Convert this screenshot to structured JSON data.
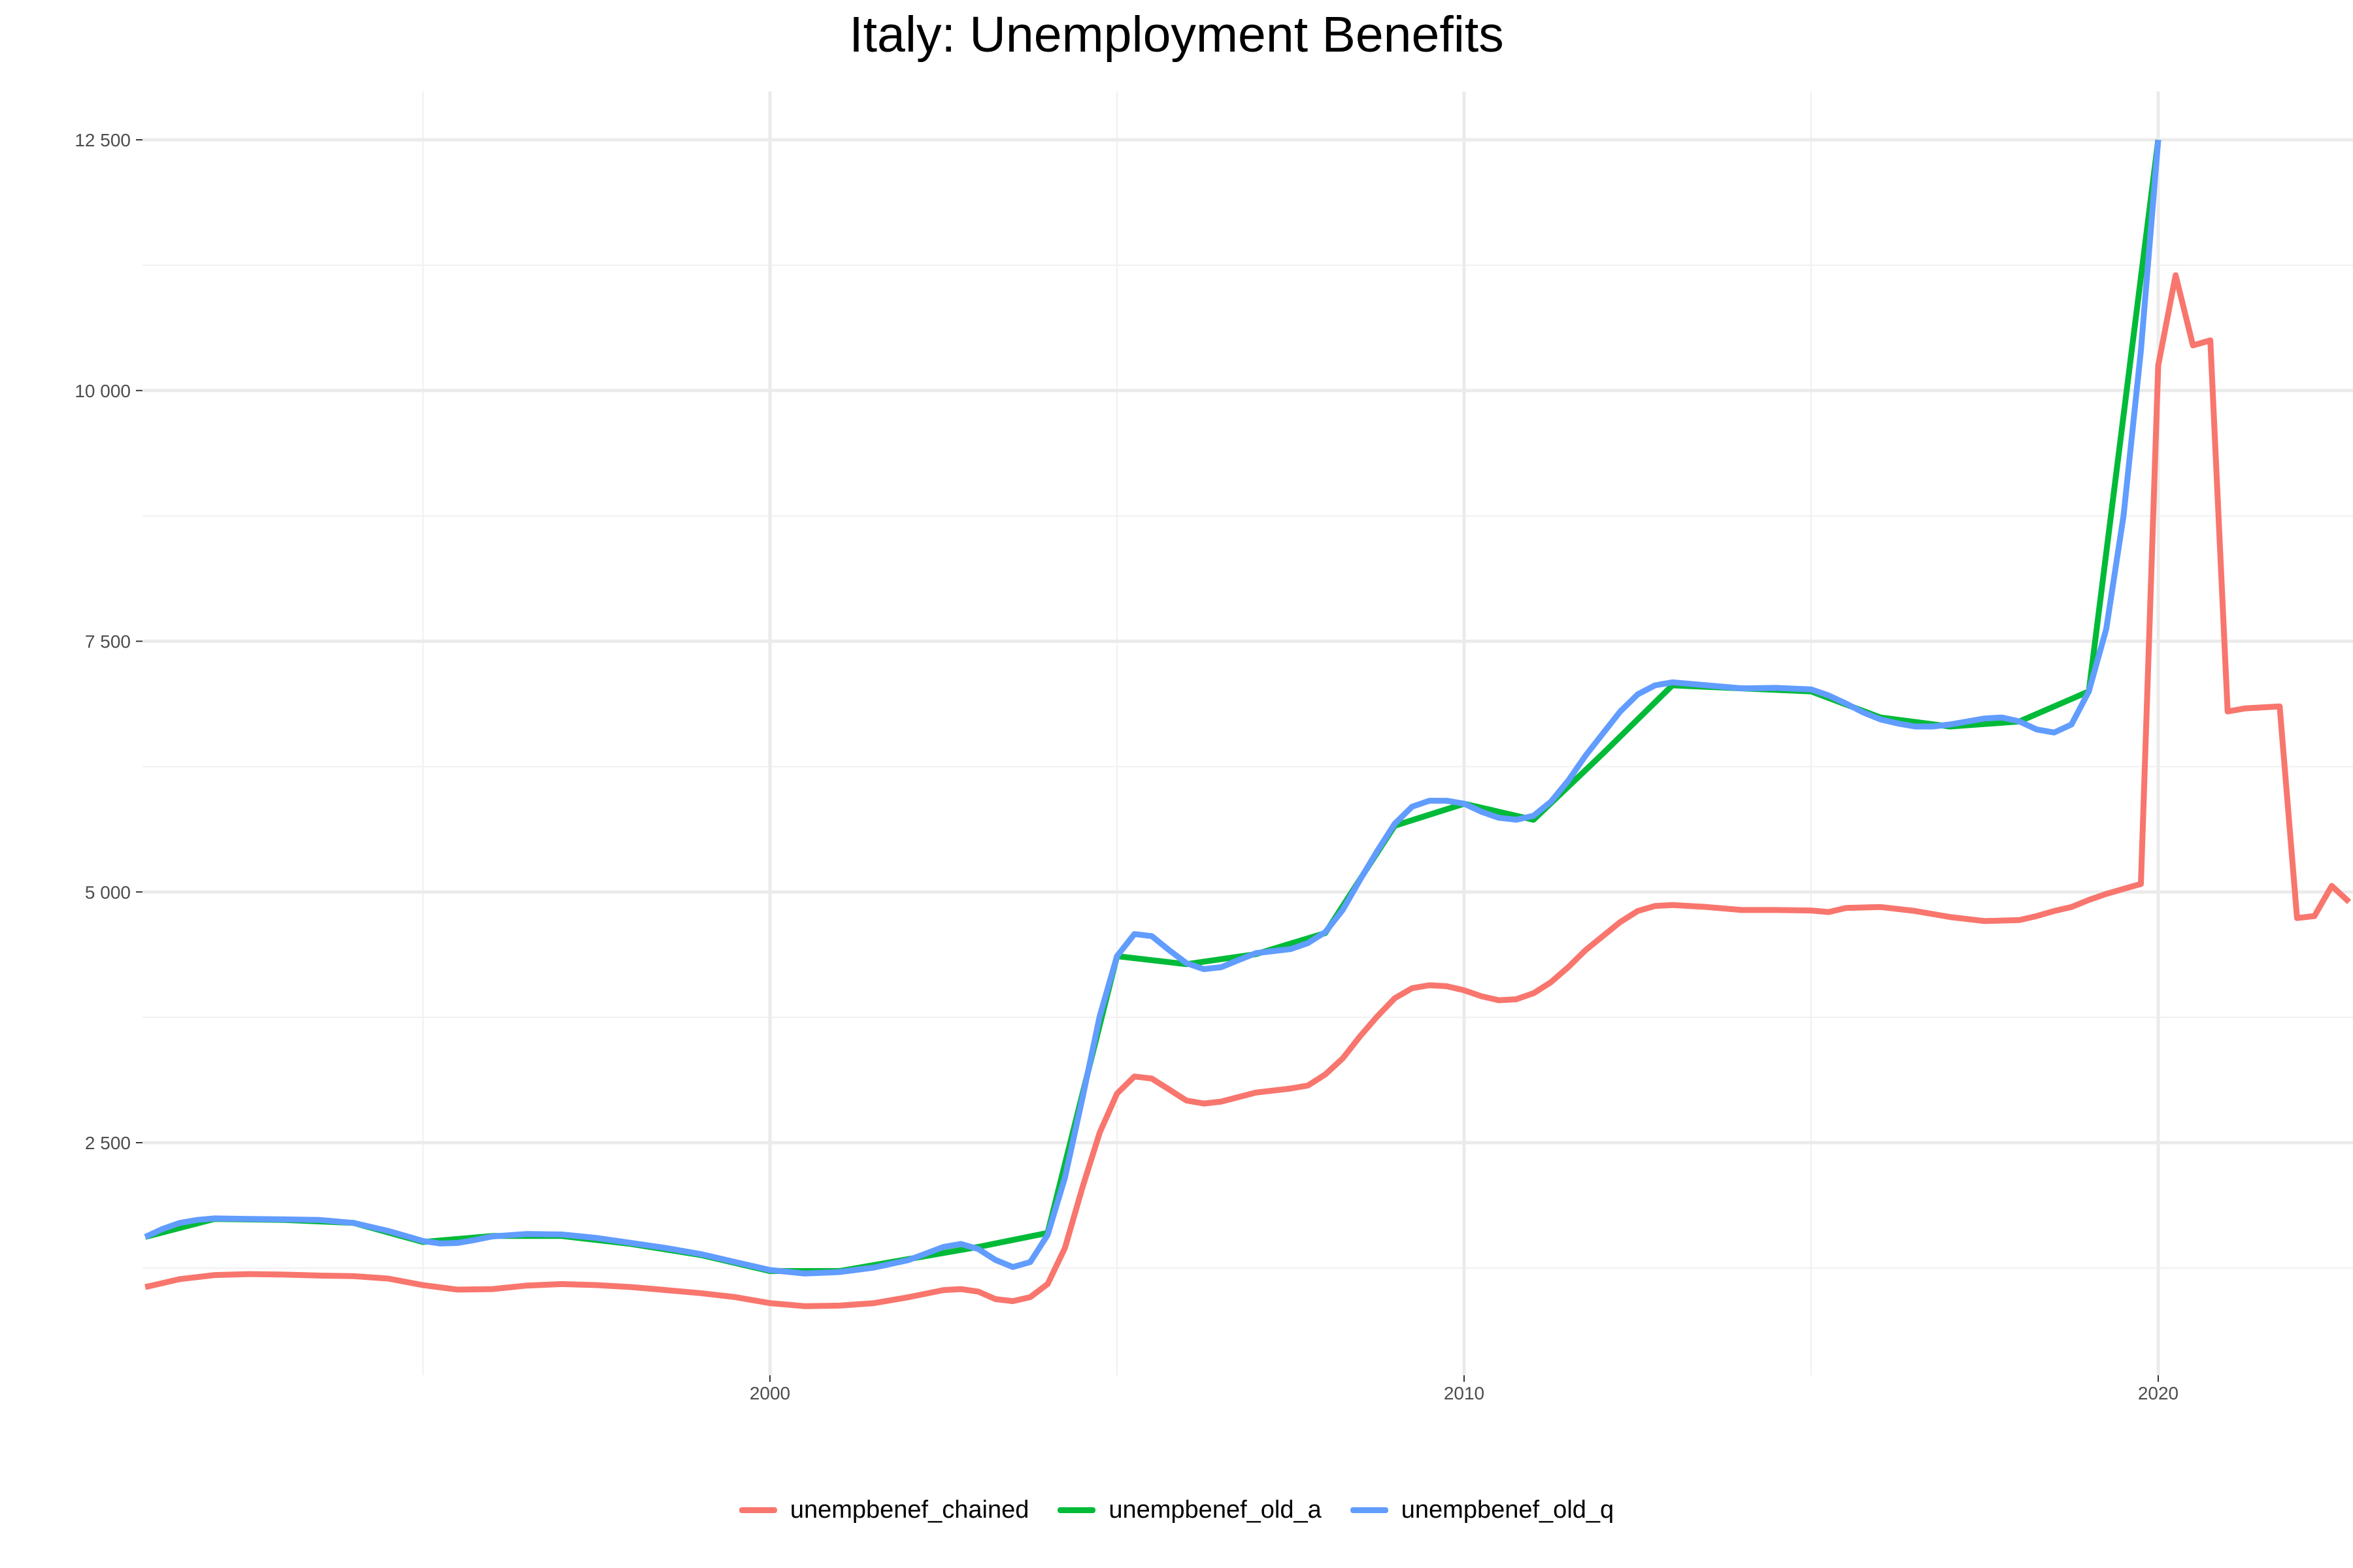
{
  "chart_data": {
    "type": "line",
    "title": "Italy: Unemployment Benefits",
    "xlabel": "",
    "ylabel": "",
    "xlim": [
      1991.0,
      2022.8
    ],
    "ylim": [
      0,
      13000
    ],
    "x_ticks": [
      2000,
      2010,
      2020
    ],
    "y_ticks": [
      2500,
      5000,
      7500,
      10000,
      12500
    ],
    "x_tick_labels": [
      "2000",
      "2010",
      "2020"
    ],
    "y_tick_labels": [
      "2 500",
      "5 000",
      "7 500",
      "10 000",
      "12 500"
    ],
    "grid": true,
    "legend_position": "bottom",
    "series": [
      {
        "name": "unempbenef_chained",
        "color": "#F8766D",
        "points": [
          [
            1991.0,
            1060
          ],
          [
            1991.5,
            1140
          ],
          [
            1992.0,
            1180
          ],
          [
            1992.5,
            1190
          ],
          [
            1993.0,
            1185
          ],
          [
            1993.5,
            1175
          ],
          [
            1994.0,
            1170
          ],
          [
            1994.5,
            1145
          ],
          [
            1995.0,
            1080
          ],
          [
            1995.5,
            1035
          ],
          [
            1996.0,
            1040
          ],
          [
            1996.5,
            1075
          ],
          [
            1997.0,
            1090
          ],
          [
            1997.5,
            1080
          ],
          [
            1998.0,
            1060
          ],
          [
            1998.5,
            1030
          ],
          [
            1999.0,
            1000
          ],
          [
            1999.5,
            960
          ],
          [
            2000.0,
            900
          ],
          [
            2000.5,
            870
          ],
          [
            2001.0,
            875
          ],
          [
            2001.5,
            900
          ],
          [
            2002.0,
            960
          ],
          [
            2002.5,
            1030
          ],
          [
            2002.75,
            1040
          ],
          [
            2003.0,
            1015
          ],
          [
            2003.25,
            940
          ],
          [
            2003.5,
            920
          ],
          [
            2003.75,
            960
          ],
          [
            2004.0,
            1090
          ],
          [
            2004.25,
            1450
          ],
          [
            2004.5,
            2050
          ],
          [
            2004.75,
            2600
          ],
          [
            2005.0,
            2990
          ],
          [
            2005.25,
            3160
          ],
          [
            2005.5,
            3140
          ],
          [
            2005.75,
            3030
          ],
          [
            2006.0,
            2920
          ],
          [
            2006.25,
            2890
          ],
          [
            2006.5,
            2910
          ],
          [
            2007.0,
            3000
          ],
          [
            2007.5,
            3040
          ],
          [
            2007.75,
            3070
          ],
          [
            2008.0,
            3180
          ],
          [
            2008.25,
            3340
          ],
          [
            2008.5,
            3560
          ],
          [
            2008.75,
            3760
          ],
          [
            2009.0,
            3940
          ],
          [
            2009.25,
            4040
          ],
          [
            2009.5,
            4070
          ],
          [
            2009.75,
            4060
          ],
          [
            2010.0,
            4020
          ],
          [
            2010.25,
            3960
          ],
          [
            2010.5,
            3920
          ],
          [
            2010.75,
            3930
          ],
          [
            2011.0,
            3990
          ],
          [
            2011.25,
            4100
          ],
          [
            2011.5,
            4250
          ],
          [
            2011.75,
            4420
          ],
          [
            2012.0,
            4560
          ],
          [
            2012.25,
            4700
          ],
          [
            2012.5,
            4810
          ],
          [
            2012.75,
            4860
          ],
          [
            2013.0,
            4870
          ],
          [
            2013.5,
            4850
          ],
          [
            2014.0,
            4820
          ],
          [
            2014.5,
            4820
          ],
          [
            2015.0,
            4815
          ],
          [
            2015.25,
            4800
          ],
          [
            2015.5,
            4840
          ],
          [
            2016.0,
            4850
          ],
          [
            2016.5,
            4810
          ],
          [
            2017.0,
            4750
          ],
          [
            2017.5,
            4710
          ],
          [
            2018.0,
            4720
          ],
          [
            2018.25,
            4760
          ],
          [
            2018.5,
            4810
          ],
          [
            2018.75,
            4850
          ],
          [
            2019.0,
            4920
          ],
          [
            2019.25,
            4980
          ],
          [
            2019.5,
            5030
          ],
          [
            2019.75,
            5080
          ],
          [
            2020.0,
            10250
          ],
          [
            2020.25,
            11150
          ],
          [
            2020.5,
            10450
          ],
          [
            2020.75,
            10500
          ],
          [
            2021.0,
            6800
          ],
          [
            2021.25,
            6830
          ],
          [
            2021.5,
            6840
          ],
          [
            2021.75,
            6850
          ],
          [
            2022.0,
            4740
          ],
          [
            2022.25,
            4760
          ],
          [
            2022.5,
            5060
          ],
          [
            2022.75,
            4900
          ]
        ]
      },
      {
        "name": "unempbenef_old_a",
        "color": "#00BA38",
        "points": [
          [
            1991.0,
            1560
          ],
          [
            1992.0,
            1740
          ],
          [
            1993.0,
            1730
          ],
          [
            1994.0,
            1700
          ],
          [
            1995.0,
            1510
          ],
          [
            1996.0,
            1570
          ],
          [
            1997.0,
            1570
          ],
          [
            1998.0,
            1490
          ],
          [
            1999.0,
            1380
          ],
          [
            2000.0,
            1220
          ],
          [
            2001.0,
            1220
          ],
          [
            2002.0,
            1340
          ],
          [
            2003.0,
            1460
          ],
          [
            2004.0,
            1600
          ],
          [
            2005.0,
            4360
          ],
          [
            2006.0,
            4280
          ],
          [
            2007.0,
            4380
          ],
          [
            2008.0,
            4590
          ],
          [
            2009.0,
            5660
          ],
          [
            2010.0,
            5880
          ],
          [
            2011.0,
            5720
          ],
          [
            2012.0,
            6380
          ],
          [
            2013.0,
            7060
          ],
          [
            2014.0,
            7030
          ],
          [
            2015.0,
            7000
          ],
          [
            2016.0,
            6740
          ],
          [
            2017.0,
            6650
          ],
          [
            2018.0,
            6700
          ],
          [
            2019.0,
            7000
          ],
          [
            2020.0,
            12500
          ]
        ]
      },
      {
        "name": "unempbenef_old_q",
        "color": "#619CFF",
        "points": [
          [
            1991.0,
            1560
          ],
          [
            1991.25,
            1640
          ],
          [
            1991.5,
            1700
          ],
          [
            1991.75,
            1730
          ],
          [
            1992.0,
            1745
          ],
          [
            1992.5,
            1740
          ],
          [
            1993.0,
            1735
          ],
          [
            1993.5,
            1730
          ],
          [
            1994.0,
            1700
          ],
          [
            1994.5,
            1620
          ],
          [
            1995.0,
            1520
          ],
          [
            1995.25,
            1495
          ],
          [
            1995.5,
            1500
          ],
          [
            1995.75,
            1530
          ],
          [
            1996.0,
            1565
          ],
          [
            1996.5,
            1590
          ],
          [
            1997.0,
            1585
          ],
          [
            1997.5,
            1550
          ],
          [
            1998.0,
            1500
          ],
          [
            1998.5,
            1450
          ],
          [
            1999.0,
            1390
          ],
          [
            1999.5,
            1310
          ],
          [
            2000.0,
            1230
          ],
          [
            2000.5,
            1195
          ],
          [
            2001.0,
            1210
          ],
          [
            2001.5,
            1255
          ],
          [
            2002.0,
            1330
          ],
          [
            2002.5,
            1460
          ],
          [
            2002.75,
            1490
          ],
          [
            2003.0,
            1440
          ],
          [
            2003.25,
            1330
          ],
          [
            2003.5,
            1260
          ],
          [
            2003.75,
            1310
          ],
          [
            2004.0,
            1580
          ],
          [
            2004.25,
            2150
          ],
          [
            2004.5,
            2940
          ],
          [
            2004.75,
            3760
          ],
          [
            2005.0,
            4360
          ],
          [
            2005.25,
            4580
          ],
          [
            2005.5,
            4560
          ],
          [
            2005.75,
            4420
          ],
          [
            2006.0,
            4290
          ],
          [
            2006.25,
            4230
          ],
          [
            2006.5,
            4250
          ],
          [
            2006.75,
            4320
          ],
          [
            2007.0,
            4390
          ],
          [
            2007.5,
            4430
          ],
          [
            2007.75,
            4490
          ],
          [
            2008.0,
            4600
          ],
          [
            2008.25,
            4820
          ],
          [
            2008.5,
            5120
          ],
          [
            2008.75,
            5410
          ],
          [
            2009.0,
            5680
          ],
          [
            2009.25,
            5850
          ],
          [
            2009.5,
            5910
          ],
          [
            2009.75,
            5910
          ],
          [
            2010.0,
            5880
          ],
          [
            2010.25,
            5800
          ],
          [
            2010.5,
            5740
          ],
          [
            2010.75,
            5720
          ],
          [
            2011.0,
            5760
          ],
          [
            2011.25,
            5900
          ],
          [
            2011.5,
            6110
          ],
          [
            2011.75,
            6360
          ],
          [
            2012.0,
            6580
          ],
          [
            2012.25,
            6800
          ],
          [
            2012.5,
            6970
          ],
          [
            2012.75,
            7060
          ],
          [
            2013.0,
            7090
          ],
          [
            2013.5,
            7060
          ],
          [
            2014.0,
            7030
          ],
          [
            2014.5,
            7035
          ],
          [
            2015.0,
            7020
          ],
          [
            2015.25,
            6960
          ],
          [
            2015.5,
            6880
          ],
          [
            2015.75,
            6790
          ],
          [
            2016.0,
            6720
          ],
          [
            2016.25,
            6680
          ],
          [
            2016.5,
            6650
          ],
          [
            2016.75,
            6650
          ],
          [
            2017.0,
            6670
          ],
          [
            2017.25,
            6700
          ],
          [
            2017.5,
            6730
          ],
          [
            2017.75,
            6740
          ],
          [
            2018.0,
            6700
          ],
          [
            2018.25,
            6620
          ],
          [
            2018.5,
            6590
          ],
          [
            2018.75,
            6670
          ],
          [
            2019.0,
            7000
          ],
          [
            2019.25,
            7620
          ],
          [
            2019.5,
            8750
          ],
          [
            2019.75,
            10400
          ],
          [
            2020.0,
            12500
          ]
        ]
      }
    ]
  }
}
